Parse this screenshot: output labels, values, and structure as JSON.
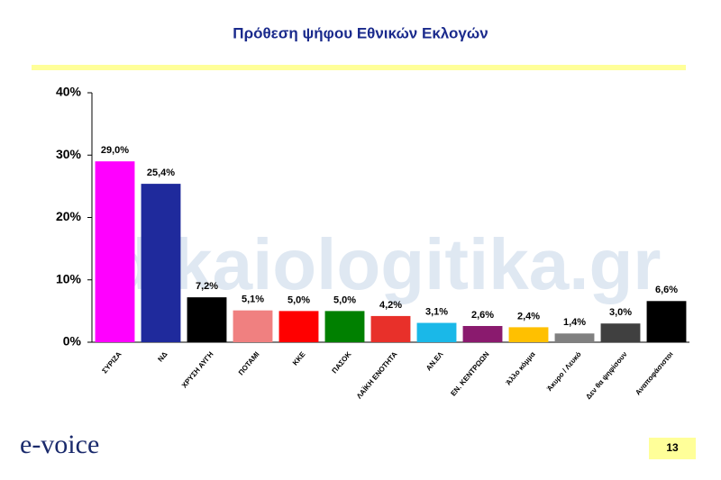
{
  "chart_data": {
    "type": "bar",
    "title": "Πρόθεση ψήφου Εθνικών Εκλογών",
    "categories": [
      "ΣΥΡΙΖΑ",
      "ΝΔ",
      "ΧΡΥΣΗ ΑΥΓΗ",
      "ΠΟΤΑΜΙ",
      "ΚΚΕ",
      "ΠΑΣΟΚ",
      "ΛΑΪΚΗ ΕΝΟΤΗΤΑ",
      "ΑΝ.ΕΛ",
      "ΕΝ. ΚΕΝΤΡΩΩΝ",
      "Άλλο κόμμα",
      "Άκυρο / Λευκό",
      "Δεν θα ψηφίσουν",
      "Αναποφάσιστοι"
    ],
    "values": [
      29.0,
      25.4,
      7.2,
      5.1,
      5.0,
      5.0,
      4.2,
      3.1,
      2.6,
      2.4,
      1.4,
      3.0,
      6.6
    ],
    "value_labels": [
      "29,0%",
      "25,4%",
      "7,2%",
      "5,1%",
      "5,0%",
      "5,0%",
      "4,2%",
      "3,1%",
      "2,6%",
      "2,4%",
      "1,4%",
      "3,0%",
      "6,6%"
    ],
    "colors": [
      "#ff00ff",
      "#1f2a9c",
      "#000000",
      "#f08080",
      "#ff0000",
      "#008000",
      "#e8302a",
      "#1ab8e8",
      "#8a1a6e",
      "#ffc000",
      "#808080",
      "#404040",
      "#000000"
    ],
    "ylim": [
      0,
      40
    ],
    "yticks": [
      {
        "value": 0,
        "label": "0%"
      },
      {
        "value": 10,
        "label": "10%"
      },
      {
        "value": 20,
        "label": "20%"
      },
      {
        "value": 30,
        "label": "30%"
      },
      {
        "value": 40,
        "label": "40%"
      }
    ],
    "grid": false
  },
  "watermark": "dikaiologitika.gr",
  "logo": "e-voice",
  "page_number": "13"
}
